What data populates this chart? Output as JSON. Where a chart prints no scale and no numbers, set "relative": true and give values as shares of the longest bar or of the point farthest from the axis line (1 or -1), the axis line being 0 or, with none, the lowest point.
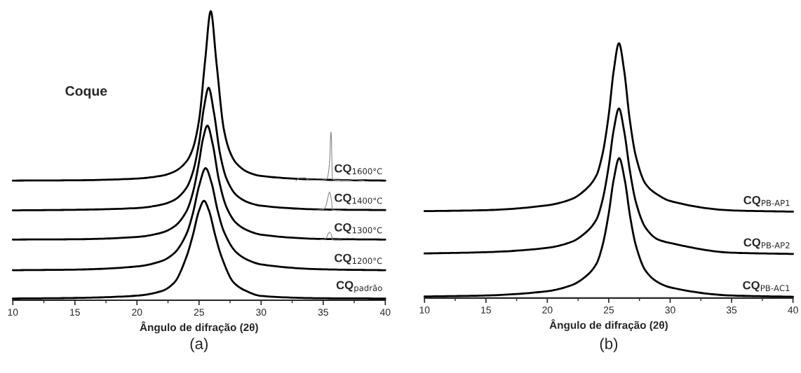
{
  "chart_data": [
    {
      "type": "line",
      "title": "(a)",
      "xlabel": "Ângulo de difração (2θ)",
      "annotations": [
        "Coque"
      ],
      "relative": true,
      "xlim": [
        10,
        40
      ],
      "xticks": [
        10,
        15,
        20,
        25,
        30,
        35,
        40
      ],
      "tick_labels": "x",
      "grid": false,
      "series": [
        {
          "name": "CQ$_{1600°C}$",
          "color": "#000000",
          "x": [
            10,
            15,
            20,
            22,
            23,
            24,
            24.5,
            25,
            25.5,
            25.94,
            26.4,
            27,
            27.5,
            28,
            29,
            30,
            35,
            40
          ],
          "values": [
            0.414,
            0.415,
            0.421,
            0.431,
            0.445,
            0.481,
            0.525,
            0.623,
            0.834,
            1.0,
            0.823,
            0.591,
            0.512,
            0.474,
            0.442,
            0.43,
            0.417,
            0.414
          ]
        },
        {
          "name": "CQ$_{1400°C}$",
          "color": "#000000",
          "x": [
            10,
            15,
            20,
            22,
            23,
            24,
            24.5,
            25,
            25.4,
            25.77,
            26.2,
            26.7,
            27.2,
            28,
            29,
            30,
            35,
            40
          ],
          "values": [
            0.311,
            0.313,
            0.319,
            0.331,
            0.347,
            0.39,
            0.443,
            0.545,
            0.668,
            0.735,
            0.649,
            0.505,
            0.422,
            0.364,
            0.338,
            0.327,
            0.314,
            0.312
          ]
        },
        {
          "name": "CQ$_{1300°C}$",
          "color": "#000000",
          "x": [
            10,
            15,
            20,
            22,
            23,
            24,
            24.5,
            25,
            25.3,
            25.67,
            26.1,
            26.6,
            27.2,
            28,
            29,
            30,
            35,
            40
          ],
          "values": [
            0.21,
            0.211,
            0.219,
            0.234,
            0.255,
            0.309,
            0.372,
            0.478,
            0.555,
            0.604,
            0.54,
            0.416,
            0.323,
            0.267,
            0.24,
            0.227,
            0.212,
            0.21
          ]
        },
        {
          "name": "CQ$_{1200°C}$",
          "color": "#000000",
          "x": [
            10,
            15,
            20,
            22,
            23,
            24,
            24.5,
            25,
            25.53,
            26,
            26.5,
            27,
            28,
            29,
            30,
            35,
            40
          ],
          "values": [
            0.104,
            0.106,
            0.117,
            0.136,
            0.163,
            0.231,
            0.3,
            0.395,
            0.457,
            0.407,
            0.31,
            0.238,
            0.166,
            0.138,
            0.124,
            0.107,
            0.104
          ]
        },
        {
          "name": "CQ$_{padrão}$",
          "color": "#000000",
          "x": [
            10,
            15,
            20,
            22,
            23,
            24,
            24.5,
            25,
            25.4,
            25.8,
            26.3,
            26.8,
            27.8,
            28.8,
            30,
            35,
            40
          ],
          "values": [
            0.006,
            0.008,
            0.016,
            0.032,
            0.061,
            0.152,
            0.225,
            0.31,
            0.344,
            0.31,
            0.225,
            0.152,
            0.061,
            0.032,
            0.015,
            0.007,
            0.006
          ]
        },
        {
          "color": "#888888",
          "x": [
            32.8,
            33.1,
            33.5,
            33.9,
            34.9,
            35.3,
            35.5,
            35.63,
            35.75,
            36.0,
            37.0,
            37.5,
            37.9,
            38.3
          ],
          "values": [
            0.413,
            0.423,
            0.424,
            0.416,
            0.415,
            0.42,
            0.47,
            0.582,
            0.42,
            0.416,
            0.415,
            0.418,
            0.416,
            0.413
          ]
        },
        {
          "color": "#888888",
          "x": [
            34.3,
            35.0,
            35.2,
            35.4,
            35.5,
            35.65,
            35.75,
            36.5
          ],
          "values": [
            0.311,
            0.315,
            0.325,
            0.36,
            0.374,
            0.35,
            0.312,
            0.31
          ]
        },
        {
          "color": "#888888",
          "x": [
            34.8,
            35.2,
            35.4,
            35.5,
            35.65,
            35.75,
            36.5
          ],
          "values": [
            0.209,
            0.212,
            0.23,
            0.235,
            0.228,
            0.209,
            0.208
          ]
        }
      ]
    },
    {
      "type": "line",
      "title": "(b)",
      "xlabel": "Ângulo de difração (2θ)",
      "relative": true,
      "xlim": [
        10,
        40
      ],
      "xticks": [
        10,
        15,
        20,
        25,
        30,
        35,
        40
      ],
      "tick_labels": "x",
      "grid": false,
      "series": [
        {
          "name": "CQ$_{PB-AP1}$",
          "color": "#000000",
          "x": [
            10,
            15,
            20,
            22,
            23,
            24,
            24.5,
            25,
            25.4,
            25.83,
            26.25,
            26.7,
            27.2,
            28,
            29,
            30,
            35,
            40
          ],
          "values": [
            0.341,
            0.345,
            0.364,
            0.389,
            0.421,
            0.482,
            0.567,
            0.72,
            0.891,
            1.0,
            0.894,
            0.704,
            0.558,
            0.448,
            0.405,
            0.381,
            0.344,
            0.339
          ]
        },
        {
          "name": "CQ$_{PB-AP2}$",
          "color": "#000000",
          "x": [
            10,
            15,
            20,
            22,
            23,
            24,
            24.5,
            25,
            25.4,
            25.83,
            26.25,
            26.7,
            27.2,
            28,
            29,
            30,
            35,
            40
          ],
          "values": [
            0.175,
            0.18,
            0.197,
            0.221,
            0.252,
            0.309,
            0.386,
            0.519,
            0.659,
            0.744,
            0.656,
            0.506,
            0.378,
            0.276,
            0.23,
            0.216,
            0.178,
            0.173
          ]
        },
        {
          "name": "CQ$_{PB-AC1}$",
          "color": "#000000",
          "x": [
            10,
            15,
            20,
            22,
            23,
            24,
            24.5,
            25,
            25.4,
            25.85,
            26.3,
            26.75,
            27.2,
            28,
            29,
            30,
            35,
            40
          ],
          "values": [
            0.006,
            0.01,
            0.027,
            0.051,
            0.08,
            0.135,
            0.208,
            0.333,
            0.464,
            0.549,
            0.464,
            0.317,
            0.208,
            0.107,
            0.062,
            0.042,
            0.01,
            0.005
          ]
        }
      ]
    }
  ]
}
